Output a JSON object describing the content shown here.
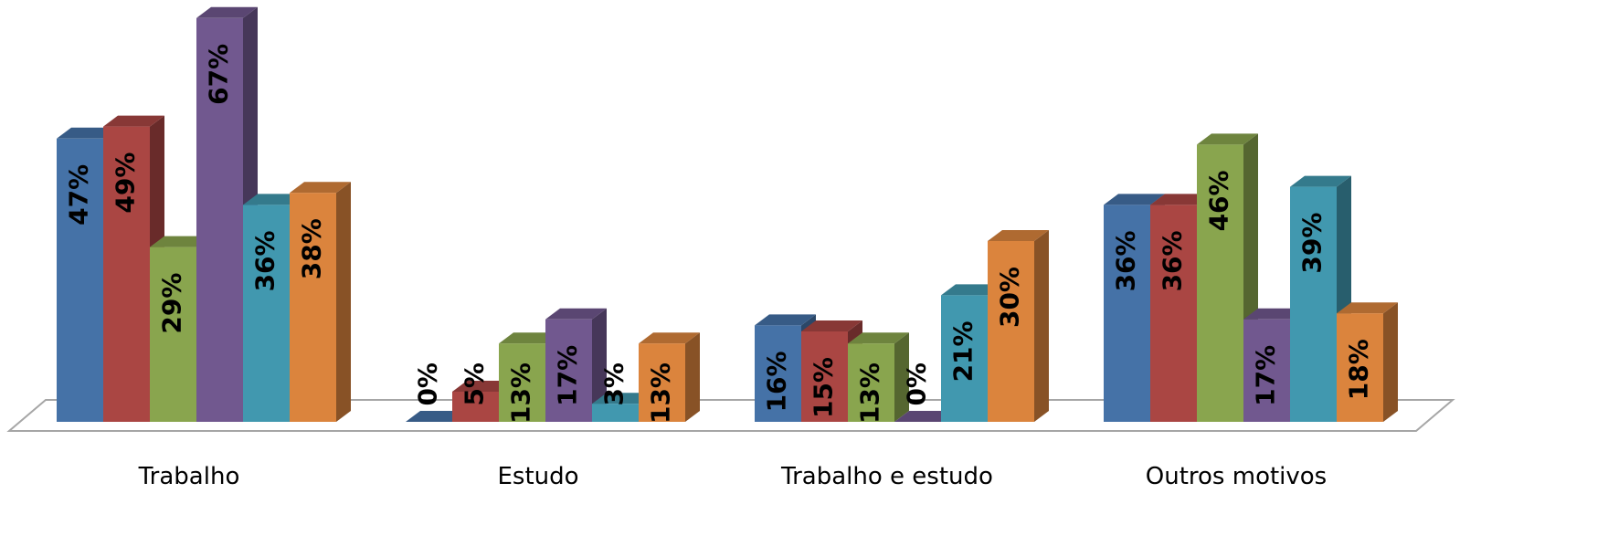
{
  "chart_data": {
    "type": "bar3d",
    "categories": [
      "Trabalho",
      "Estudo",
      "Trabalho e estudo",
      "Outros motivos"
    ],
    "series": [
      {
        "color": "#4572a7",
        "values": [
          47,
          0,
          16,
          36
        ],
        "value_labels": [
          "47%",
          "0%",
          "16%",
          "36%"
        ]
      },
      {
        "color": "#aa4643",
        "values": [
          49,
          5,
          15,
          36
        ],
        "value_labels": [
          "49%",
          "5%",
          "15%",
          "36%"
        ]
      },
      {
        "color": "#89a54e",
        "values": [
          29,
          13,
          13,
          46
        ],
        "value_labels": [
          "29%",
          "13%",
          "13%",
          "46%"
        ]
      },
      {
        "color": "#71588f",
        "values": [
          67,
          17,
          0,
          17
        ],
        "value_labels": [
          "67%",
          "17%",
          "0%",
          "17%"
        ]
      },
      {
        "color": "#4198af",
        "values": [
          36,
          3,
          21,
          39
        ],
        "value_labels": [
          "36%",
          "3%",
          "21%",
          "39%"
        ]
      },
      {
        "color": "#db843d",
        "values": [
          38,
          13,
          30,
          18
        ],
        "value_labels": [
          "38%",
          "13%",
          "30%",
          "18%"
        ]
      }
    ]
  }
}
